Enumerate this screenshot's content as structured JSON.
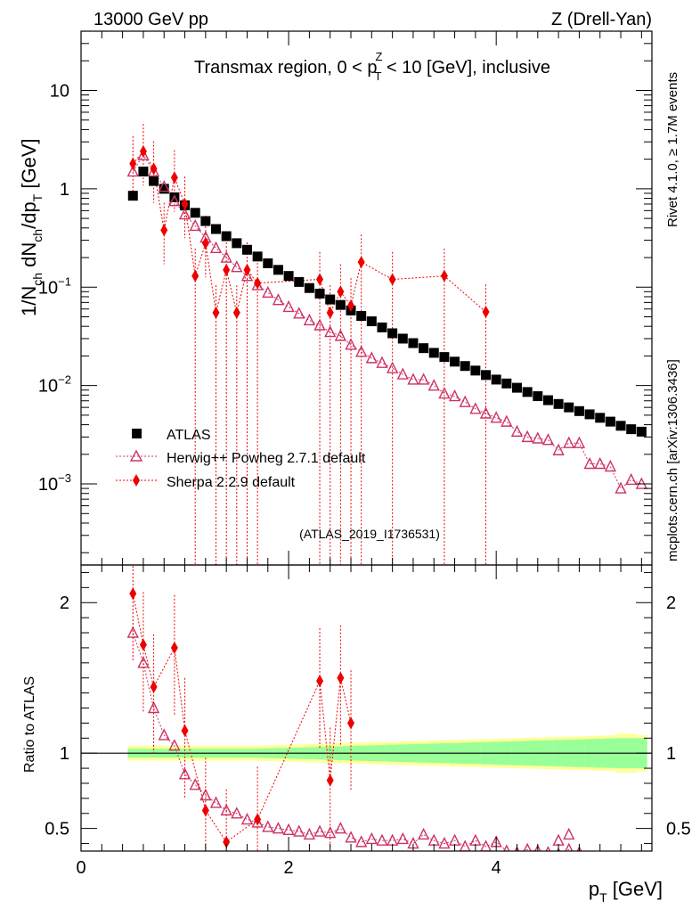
{
  "colors": {
    "atlas": "#000000",
    "herwig": "#cc3366",
    "sherpa": "#ee0000",
    "band_outer": "#ffff99",
    "band_inner": "#99ff99",
    "side_text": "#808080"
  },
  "header": {
    "left": "13000 GeV pp",
    "right": "Z (Drell-Yan)"
  },
  "side_labels": {
    "rivet": "Rivet 4.1.0, ≥ 1.7M events",
    "mcplots": "mcplots.cern.ch [arXiv:1306.3436]"
  },
  "watermark": "(ATLAS_2019_I1736531)",
  "chart_data": {
    "type": "scatter",
    "title": "Transmax region, 0 < pTZ < 10 [GeV], inclusive",
    "title_parts": [
      "Transmax region, 0 < p",
      "Z",
      "T",
      " < 10 [GeV], inclusive"
    ],
    "xlabel": "pT [GeV]",
    "xlabel_parts": [
      "p",
      "T",
      " [GeV]"
    ],
    "ylabel": "1/Nch dNch/dpT [GeV]",
    "ylabel_parts": [
      "1/N",
      "ch",
      " dN",
      "ch",
      "/dp",
      "T",
      " [GeV]"
    ],
    "ratio_ylabel": "Ratio to ATLAS",
    "xlim": [
      0,
      5.5
    ],
    "ylim": [
      0.00015,
      40
    ],
    "ratio_ylim": [
      0.35,
      2.25
    ],
    "x_ticks": [
      {
        "v": 0,
        "label": "0"
      },
      {
        "v": 2,
        "label": "2"
      },
      {
        "v": 4,
        "label": "4"
      }
    ],
    "y_ticks": [
      {
        "v": 10,
        "label": "10",
        "exp": ""
      },
      {
        "v": 1,
        "label": "1",
        "exp": ""
      },
      {
        "v": 0.1,
        "label": "10",
        "exp": "−1"
      },
      {
        "v": 0.01,
        "label": "10",
        "exp": "−2"
      },
      {
        "v": 0.001,
        "label": "10",
        "exp": "−3"
      }
    ],
    "ratio_ticks": [
      {
        "v": 2,
        "label": "2"
      },
      {
        "v": 1,
        "label": "1"
      },
      {
        "v": 0.5,
        "label": "0.5"
      }
    ],
    "x": [
      0.5,
      0.6,
      0.7,
      0.8,
      0.9,
      1.0,
      1.1,
      1.2,
      1.3,
      1.4,
      1.5,
      1.6,
      1.7,
      1.8,
      1.9,
      2.0,
      2.1,
      2.2,
      2.3,
      2.4,
      2.5,
      2.6,
      2.7,
      2.8,
      2.9,
      3.0,
      3.1,
      3.2,
      3.3,
      3.4,
      3.5,
      3.6,
      3.7,
      3.8,
      3.9,
      4.0,
      4.1,
      4.2,
      4.3,
      4.4,
      4.5,
      4.6,
      4.7,
      4.8,
      4.9,
      5.0,
      5.1,
      5.2,
      5.3,
      5.4
    ],
    "series": [
      {
        "name": "ATLAS",
        "marker": "square",
        "values": [
          0.85,
          1.5,
          1.2,
          1.0,
          0.82,
          0.68,
          0.57,
          0.47,
          0.39,
          0.33,
          0.28,
          0.24,
          0.205,
          0.175,
          0.15,
          0.13,
          0.113,
          0.098,
          0.086,
          0.075,
          0.066,
          0.058,
          0.051,
          0.045,
          0.039,
          0.034,
          0.03,
          0.027,
          0.024,
          0.0215,
          0.0195,
          0.0175,
          0.0158,
          0.0142,
          0.0128,
          0.0115,
          0.0105,
          0.0095,
          0.0086,
          0.0078,
          0.0071,
          0.0065,
          0.006,
          0.0055,
          0.0051,
          0.0047,
          0.0043,
          0.0039,
          0.0036,
          0.0034
        ],
        "band_inner": [
          0.03,
          0.03,
          0.03,
          0.03,
          0.03,
          0.03,
          0.03,
          0.03,
          0.03,
          0.03,
          0.03,
          0.03,
          0.03,
          0.032,
          0.034,
          0.036,
          0.038,
          0.04,
          0.042,
          0.044,
          0.046,
          0.048,
          0.05,
          0.052,
          0.054,
          0.056,
          0.058,
          0.06,
          0.062,
          0.064,
          0.066,
          0.068,
          0.07,
          0.072,
          0.074,
          0.076,
          0.078,
          0.08,
          0.082,
          0.084,
          0.086,
          0.088,
          0.09,
          0.092,
          0.094,
          0.096,
          0.098,
          0.1,
          0.1,
          0.1
        ],
        "band_outer": [
          0.05,
          0.05,
          0.05,
          0.05,
          0.05,
          0.05,
          0.05,
          0.05,
          0.05,
          0.05,
          0.05,
          0.05,
          0.05,
          0.052,
          0.054,
          0.056,
          0.058,
          0.06,
          0.062,
          0.064,
          0.066,
          0.068,
          0.07,
          0.072,
          0.074,
          0.076,
          0.078,
          0.08,
          0.082,
          0.084,
          0.086,
          0.088,
          0.09,
          0.092,
          0.094,
          0.096,
          0.098,
          0.1,
          0.102,
          0.104,
          0.106,
          0.108,
          0.11,
          0.112,
          0.114,
          0.116,
          0.118,
          0.13,
          0.13,
          0.12
        ]
      },
      {
        "name": "Herwig++ Powheg 2.7.1 default",
        "marker": "triangle",
        "values": [
          1.5,
          2.2,
          1.5,
          1.05,
          0.75,
          0.55,
          0.42,
          0.32,
          0.25,
          0.2,
          0.16,
          0.13,
          0.105,
          0.088,
          0.074,
          0.063,
          0.054,
          0.046,
          0.041,
          0.035,
          0.032,
          0.026,
          0.022,
          0.019,
          0.017,
          0.015,
          0.013,
          0.0115,
          0.0115,
          0.01,
          0.0083,
          0.0078,
          0.0068,
          0.0058,
          0.0052,
          0.0047,
          0.0043,
          0.0034,
          0.003,
          0.0029,
          0.0028,
          0.0022,
          0.0026,
          0.0026,
          0.0016,
          0.0016,
          0.0015,
          0.0009,
          0.0011,
          0.001
        ]
      },
      {
        "name": "Sherpa 2.2.9 default",
        "marker": "diamond",
        "x": [
          0.5,
          0.6,
          0.7,
          0.8,
          0.9,
          1.0,
          1.1,
          1.2,
          1.3,
          1.4,
          1.5,
          1.6,
          1.7,
          2.3,
          2.4,
          2.5,
          2.6,
          2.7,
          3.0,
          3.5,
          3.9
        ],
        "values": [
          1.8,
          2.4,
          1.6,
          0.38,
          1.3,
          0.7,
          0.13,
          0.28,
          0.055,
          0.15,
          0.055,
          0.15,
          0.11,
          0.12,
          0.055,
          0.09,
          0.065,
          0.18,
          0.12,
          0.13,
          0.056
        ]
      }
    ],
    "ratio": {
      "herwig": [
        1.8,
        1.6,
        1.3,
        1.12,
        1.05,
        0.86,
        0.79,
        0.72,
        0.67,
        0.62,
        0.6,
        0.56,
        0.54,
        0.51,
        0.5,
        0.49,
        0.48,
        0.46,
        0.48,
        0.47,
        0.5,
        0.44,
        0.41,
        0.43,
        0.42,
        0.42,
        0.43,
        0.4,
        0.46,
        0.42,
        0.4,
        0.42,
        0.38,
        0.42,
        0.38,
        0.41,
        0.35,
        0.34,
        0.36,
        0.35,
        0.34,
        0.33,
        0.36,
        0.34,
        0.42,
        0.46
      ],
      "herwig_x": [
        0.5,
        0.6,
        0.7,
        0.8,
        0.9,
        1.0,
        1.1,
        1.2,
        1.3,
        1.4,
        1.5,
        1.6,
        1.7,
        1.8,
        1.9,
        2.0,
        2.1,
        2.2,
        2.3,
        2.4,
        2.5,
        2.6,
        2.7,
        2.8,
        2.9,
        3.0,
        3.1,
        3.2,
        3.3,
        3.4,
        3.5,
        3.6,
        3.7,
        3.8,
        3.9,
        4.0,
        4.1,
        4.2,
        4.3,
        4.4,
        4.5,
        4.6,
        4.7,
        4.8,
        4.6,
        4.7
      ],
      "sherpa_x": [
        0.5,
        0.6,
        0.7,
        0.9,
        1.0,
        1.2,
        1.4,
        1.7,
        2.3,
        2.4,
        2.5,
        2.6
      ],
      "sherpa": [
        2.06,
        1.72,
        1.44,
        1.7,
        1.15,
        0.62,
        0.41,
        0.56,
        1.48,
        0.82,
        1.5,
        1.2
      ]
    }
  }
}
